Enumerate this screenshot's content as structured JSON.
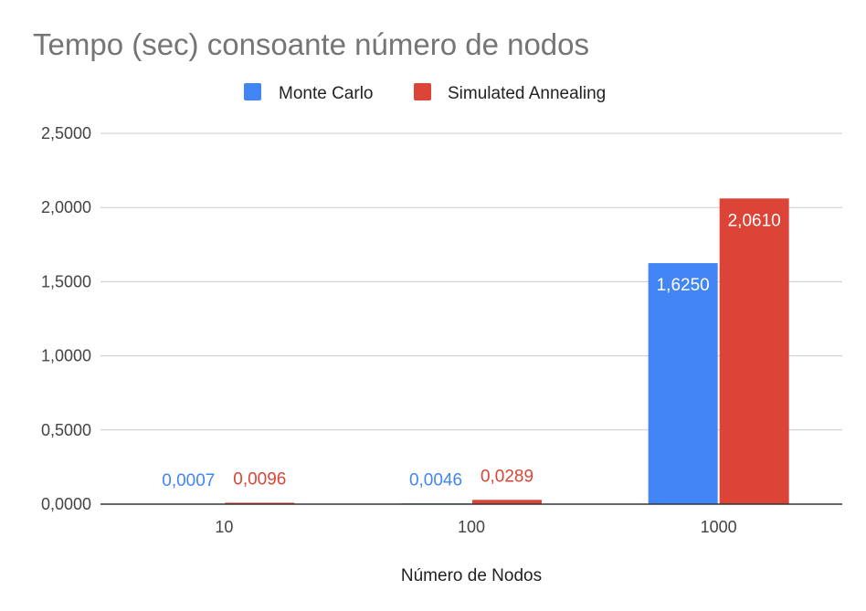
{
  "chart_data": {
    "type": "bar",
    "title": "Tempo (sec) consoante número de nodos",
    "xlabel": "Número de Nodos",
    "ylabel": "",
    "categories": [
      "10",
      "100",
      "1000"
    ],
    "series": [
      {
        "name": "Monte Carlo",
        "color": "#4285f4",
        "values": [
          0.0007,
          0.0046,
          1.625
        ],
        "labels": [
          "0,0007",
          "0,0046",
          "1,6250"
        ]
      },
      {
        "name": "Simulated Annealing",
        "color": "#db4437",
        "values": [
          0.0096,
          0.0289,
          2.061
        ],
        "labels": [
          "0,0096",
          "0,0289",
          "2,0610"
        ]
      }
    ],
    "ylim": [
      0,
      2.5
    ],
    "yticks": [
      0,
      0.5,
      1.0,
      1.5,
      2.0,
      2.5
    ],
    "ytick_labels": [
      "0,0000",
      "0,5000",
      "1,0000",
      "1,5000",
      "2,0000",
      "2,5000"
    ],
    "grid": true,
    "legend_position": "top-center"
  }
}
